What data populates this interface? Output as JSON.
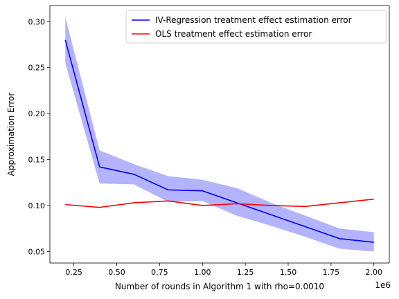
{
  "chart_data": {
    "type": "line",
    "title": "",
    "xlabel": "Number of rounds in Algorithm 1 with rho=0.0010",
    "ylabel": "Approximation Error",
    "x_offset_label": "1e6",
    "x_multiplier": 1000000,
    "xlim": [
      0.11,
      2.09
    ],
    "ylim": [
      0.0375,
      0.3175
    ],
    "x_ticks": [
      0.25,
      0.5,
      0.75,
      1.0,
      1.25,
      1.5,
      1.75,
      2.0
    ],
    "x_tick_labels": [
      "0.25",
      "0.50",
      "0.75",
      "1.00",
      "1.25",
      "1.50",
      "1.75",
      "2.00"
    ],
    "y_ticks": [
      0.05,
      0.1,
      0.15,
      0.2,
      0.25,
      0.3
    ],
    "y_tick_labels": [
      "0.05",
      "0.10",
      "0.15",
      "0.20",
      "0.25",
      "0.30"
    ],
    "grid": false,
    "legend_position": "top-right",
    "x": [
      0.2,
      0.4,
      0.6,
      0.8,
      1.0,
      1.2,
      1.4,
      1.6,
      1.8,
      2.0
    ],
    "series": [
      {
        "name": "IV-Regression treatment effect estimation error",
        "color": "#0000ff",
        "band_color": "#b3b3ff",
        "values": [
          0.28,
          0.142,
          0.134,
          0.117,
          0.116,
          0.103,
          0.09,
          0.077,
          0.064,
          0.06
        ],
        "band_lower": [
          0.255,
          0.124,
          0.123,
          0.104,
          0.105,
          0.089,
          0.078,
          0.066,
          0.053,
          0.05
        ],
        "band_upper": [
          0.305,
          0.16,
          0.145,
          0.132,
          0.128,
          0.119,
          0.103,
          0.089,
          0.075,
          0.071
        ]
      },
      {
        "name": "OLS treatment effect estimation error",
        "color": "#ff0000",
        "values": [
          0.101,
          0.098,
          0.103,
          0.105,
          0.1,
          0.102,
          0.1,
          0.099,
          0.103,
          0.107
        ]
      }
    ]
  }
}
